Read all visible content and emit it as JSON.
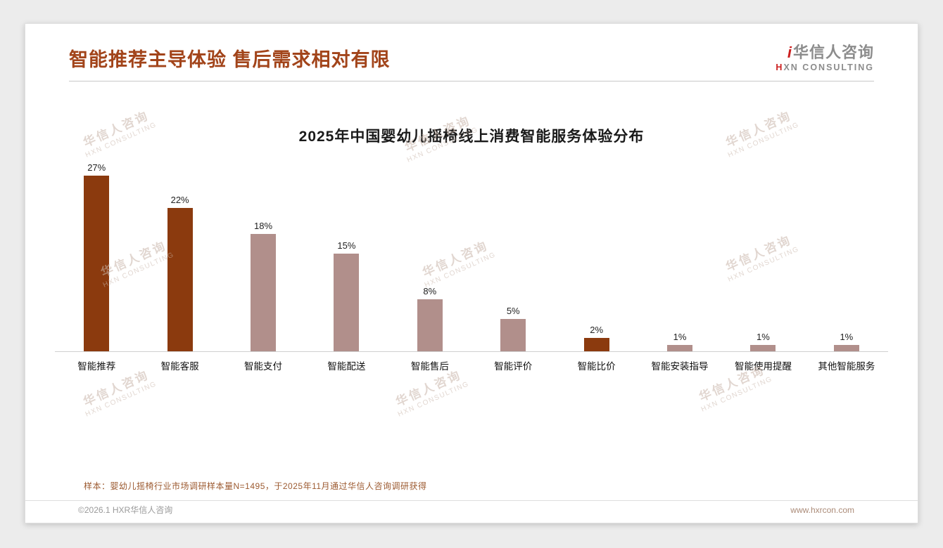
{
  "header": {
    "title": "智能推荐主导体验 售后需求相对有限",
    "logo": {
      "mark": "i",
      "name": "华信人咨询",
      "subtitle_first": "H",
      "subtitle_rest": "XN CONSULTING"
    }
  },
  "chart_data": {
    "type": "bar",
    "title": "2025年中国婴幼儿摇椅线上消费智能服务体验分布",
    "categories": [
      "智能推荐",
      "智能客服",
      "智能支付",
      "智能配送",
      "智能售后",
      "智能评价",
      "智能比价",
      "智能安装指导",
      "智能使用提醒",
      "其他智能服务"
    ],
    "values": [
      27,
      22,
      18,
      15,
      8,
      5,
      2,
      1,
      1,
      1
    ],
    "value_labels": [
      "27%",
      "22%",
      "18%",
      "15%",
      "8%",
      "5%",
      "2%",
      "1%",
      "1%",
      "1%"
    ],
    "bar_colors": [
      "#8B3A0E",
      "#8B3A0E",
      "#B18F8B",
      "#B18F8B",
      "#B18F8B",
      "#B18F8B",
      "#8B3A0E",
      "#B18F8B",
      "#B18F8B",
      "#B18F8B"
    ],
    "xlabel": "",
    "ylabel": "",
    "ylim": [
      0,
      30
    ],
    "grid": false,
    "legend": false
  },
  "watermark": {
    "line1": "华信人咨询",
    "line2": "HXN CONSULTING"
  },
  "footer": {
    "sample_note": "样本：婴幼儿摇椅行业市场调研样本量N=1495，于2025年11月通过华信人咨询调研获得",
    "copyright": "©2026.1 HXR华信人咨询",
    "website": "www.hxrcon.com"
  },
  "colors": {
    "title": "#A2441A",
    "bar_primary": "#8B3A0E",
    "bar_secondary": "#B18F8B",
    "watermark": "#c9b6aa"
  }
}
